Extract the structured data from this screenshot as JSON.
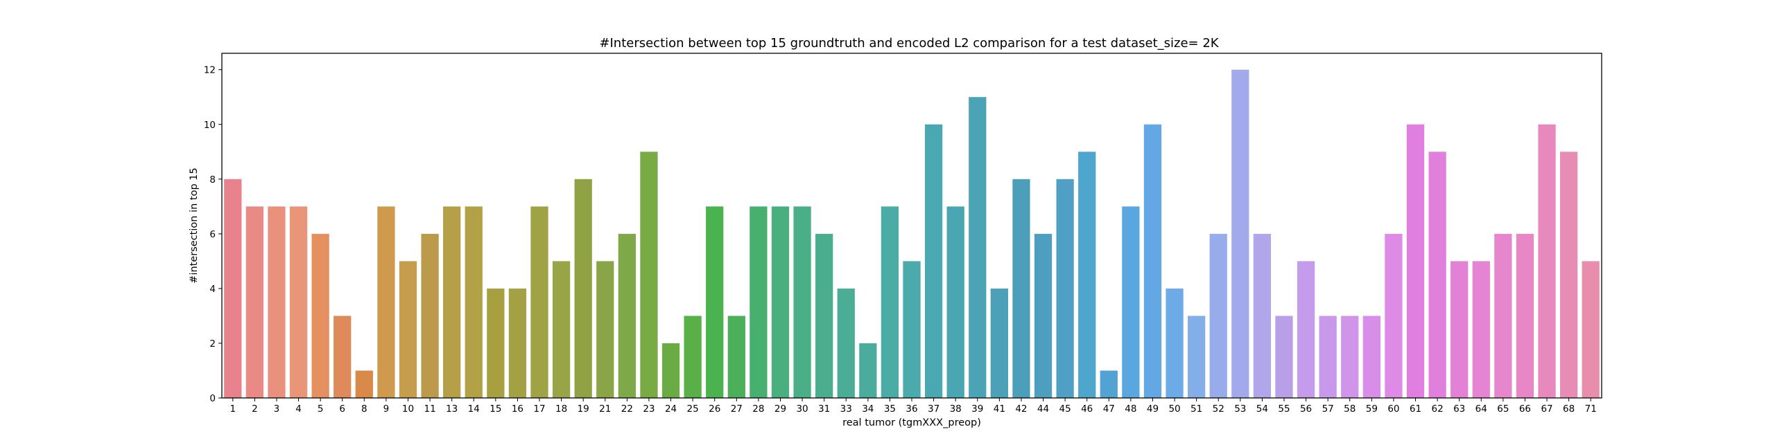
{
  "chart_data": {
    "type": "bar",
    "title": "#Intersection between top 15 groundtruth and encoded L2 comparison for a test dataset_size= 2K",
    "xlabel": "real tumor (tgmXXX_preop)",
    "ylabel": "#intersection in top 15",
    "ylim": [
      0,
      12.6
    ],
    "yticks": [
      0,
      2,
      4,
      6,
      8,
      10,
      12
    ],
    "grid": false,
    "categories": [
      "1",
      "2",
      "3",
      "4",
      "5",
      "6",
      "8",
      "9",
      "10",
      "11",
      "13",
      "14",
      "15",
      "16",
      "17",
      "18",
      "19",
      "21",
      "22",
      "23",
      "24",
      "25",
      "26",
      "27",
      "28",
      "29",
      "30",
      "31",
      "33",
      "34",
      "35",
      "36",
      "37",
      "38",
      "39",
      "41",
      "42",
      "44",
      "45",
      "46",
      "47",
      "48",
      "49",
      "50",
      "51",
      "52",
      "53",
      "54",
      "55",
      "56",
      "57",
      "58",
      "59",
      "60",
      "61",
      "62",
      "63",
      "64",
      "65",
      "66",
      "67",
      "68",
      "71"
    ],
    "values": [
      8,
      7,
      7,
      7,
      6,
      3,
      1,
      7,
      5,
      6,
      7,
      7,
      4,
      4,
      7,
      5,
      8,
      5,
      6,
      9,
      2,
      3,
      7,
      3,
      7,
      7,
      7,
      6,
      4,
      2,
      7,
      5,
      10,
      7,
      11,
      4,
      8,
      6,
      8,
      9,
      1,
      7,
      10,
      4,
      3,
      6,
      12,
      6,
      3,
      5,
      3,
      3,
      3,
      6,
      10,
      9,
      5,
      5,
      6,
      6,
      10,
      9,
      5
    ],
    "colors": [
      "#e8828c",
      "#e98a84",
      "#e9917d",
      "#e99578",
      "#e49060",
      "#de8a5a",
      "#d98a48",
      "#cf9a4e",
      "#c69d4c",
      "#bb9a4b",
      "#b59f48",
      "#b3a148",
      "#a8a040",
      "#a4a144",
      "#9fa345",
      "#98a445",
      "#8fa345",
      "#89a547",
      "#7fa848",
      "#78ab44",
      "#6aab44",
      "#59b048",
      "#4ab34f",
      "#4cb05b",
      "#48b06f",
      "#4aaf7e",
      "#4aae86",
      "#4aae8e",
      "#4bad96",
      "#4bac9e",
      "#4aaca5",
      "#4aaaac",
      "#4aa8b0",
      "#4aa6b3",
      "#4ba4b6",
      "#4ca1b8",
      "#4d9fb9",
      "#4e9ec0",
      "#50a0c6",
      "#4ea6cc",
      "#52a3d4",
      "#5aa6de",
      "#63a8e4",
      "#6daae8",
      "#84aee8",
      "#98aceb",
      "#a3aaeb",
      "#b1a6ea",
      "#b99fe8",
      "#c49ceb",
      "#c898ea",
      "#d095e9",
      "#d88ee8",
      "#de8be7",
      "#e07fe0",
      "#e180dc",
      "#e381d6",
      "#e584d2",
      "#e686cc",
      "#e787c6",
      "#e789bd",
      "#e78cb4",
      "#e88eac"
    ]
  }
}
